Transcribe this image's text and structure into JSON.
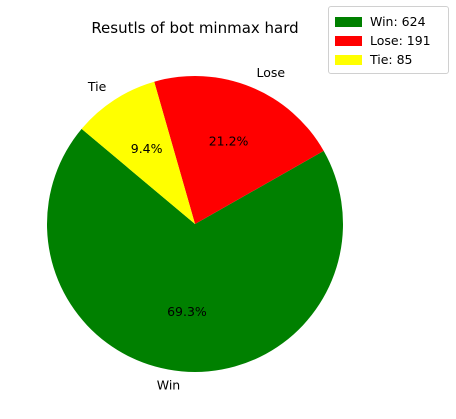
{
  "chart_data": {
    "type": "pie",
    "title": "Resutls of bot minmax hard",
    "categories": [
      "Win",
      "Lose",
      "Tie"
    ],
    "values": [
      624,
      191,
      85
    ],
    "percent_labels": [
      "69.3%",
      "21.2%",
      "9.4%"
    ],
    "colors": [
      "#008000",
      "#ff0000",
      "#ffff00"
    ],
    "legend_entries": [
      "Win: 624",
      "Lose: 191",
      "Tie: 85"
    ],
    "legend_position": "top-right",
    "start_angle_deg": 140,
    "direction": "counterclockwise"
  }
}
